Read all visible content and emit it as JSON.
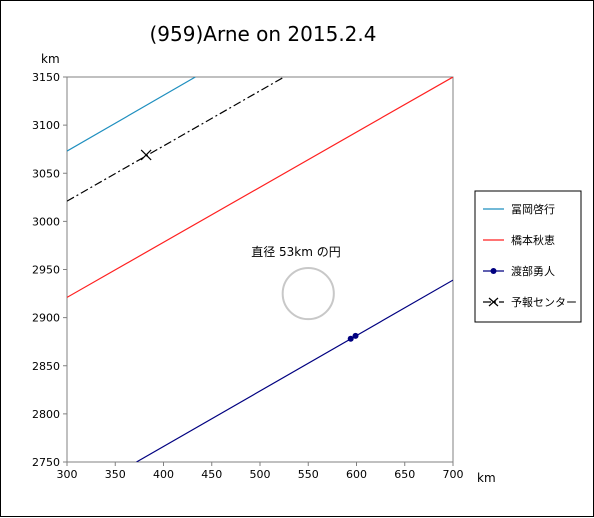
{
  "chart_data": {
    "type": "line",
    "title": "(959)Arne on 2015.2.4",
    "xlabel": "km",
    "ylabel": "km",
    "xlim": [
      300,
      700
    ],
    "ylim": [
      2750,
      3150
    ],
    "xticks": [
      "300",
      "350",
      "400",
      "450",
      "500",
      "550",
      "600",
      "650",
      "700"
    ],
    "yticks": [
      "2750",
      "2800",
      "2850",
      "2900",
      "2950",
      "3000",
      "3050",
      "3100",
      "3150"
    ],
    "grid": false,
    "legend_position": "right",
    "annotation": {
      "text": "直径 53km の円",
      "circle_center": [
        550,
        2925
      ],
      "circle_diameter_km": 53
    },
    "series": [
      {
        "name": "冨岡啓行",
        "color": "#1f8fbf",
        "style": "solid",
        "marker": "none",
        "x": [
          300,
          433
        ],
        "y": [
          3073,
          3150
        ]
      },
      {
        "name": "橋本秋恵",
        "color": "#ff2020",
        "style": "solid",
        "marker": "none",
        "x": [
          300,
          700
        ],
        "y": [
          2921,
          3150
        ]
      },
      {
        "name": "渡部勇人",
        "color": "#000080",
        "style": "solid",
        "marker": "circle",
        "x": [
          372,
          700
        ],
        "y": [
          2750,
          2939
        ],
        "points": [
          [
            594,
            2878
          ],
          [
            599,
            2881
          ]
        ]
      },
      {
        "name": "予報センター",
        "color": "#000000",
        "style": "dashdot",
        "marker": "x",
        "x": [
          300,
          525
        ],
        "y": [
          3021,
          3150
        ],
        "points": [
          [
            382,
            3069
          ]
        ]
      }
    ]
  }
}
